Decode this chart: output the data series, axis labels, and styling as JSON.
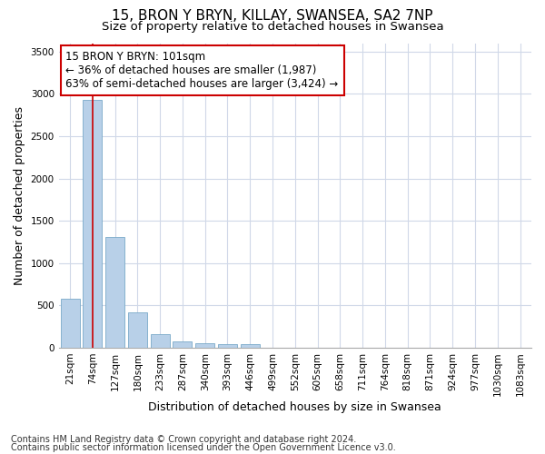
{
  "title_line1": "15, BRON Y BRYN, KILLAY, SWANSEA, SA2 7NP",
  "title_line2": "Size of property relative to detached houses in Swansea",
  "xlabel": "Distribution of detached houses by size in Swansea",
  "ylabel": "Number of detached properties",
  "categories": [
    "21sqm",
    "74sqm",
    "127sqm",
    "180sqm",
    "233sqm",
    "287sqm",
    "340sqm",
    "393sqm",
    "446sqm",
    "499sqm",
    "552sqm",
    "605sqm",
    "658sqm",
    "711sqm",
    "764sqm",
    "818sqm",
    "871sqm",
    "924sqm",
    "977sqm",
    "1030sqm",
    "1083sqm"
  ],
  "values": [
    575,
    2930,
    1310,
    415,
    165,
    80,
    50,
    45,
    45,
    0,
    0,
    0,
    0,
    0,
    0,
    0,
    0,
    0,
    0,
    0,
    0
  ],
  "bar_color": "#b8d0e8",
  "bar_edge_color": "#7aaac8",
  "bar_linewidth": 0.6,
  "vline_x_index": 1,
  "vline_color": "#cc0000",
  "annotation_line1": "15 BRON Y BRYN: 101sqm",
  "annotation_line2": "← 36% of detached houses are smaller (1,987)",
  "annotation_line3": "63% of semi-detached houses are larger (3,424) →",
  "annotation_box_color": "#ffffff",
  "annotation_border_color": "#cc0000",
  "ylim": [
    0,
    3600
  ],
  "yticks": [
    0,
    500,
    1000,
    1500,
    2000,
    2500,
    3000,
    3500
  ],
  "bg_color": "#ffffff",
  "plot_bg_color": "#ffffff",
  "grid_color": "#d0d8e8",
  "footer_line1": "Contains HM Land Registry data © Crown copyright and database right 2024.",
  "footer_line2": "Contains public sector information licensed under the Open Government Licence v3.0.",
  "title_fontsize": 11,
  "subtitle_fontsize": 9.5,
  "axis_label_fontsize": 9,
  "tick_fontsize": 7.5,
  "annotation_fontsize": 8.5,
  "footer_fontsize": 7
}
